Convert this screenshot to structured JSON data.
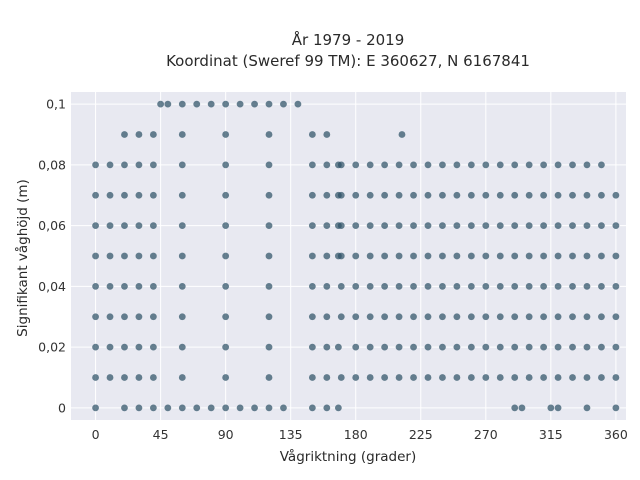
{
  "chart_data": {
    "type": "scatter",
    "title": "År 1979 - 2019",
    "subtitle": "Koordinat (Sweref 99 TM): E 360627, N 6167841",
    "xlabel": "Vågriktning (grader)",
    "ylabel": "Signifikant våghöjd (m)",
    "xlim": [
      -17,
      367
    ],
    "ylim": [
      -0.004,
      0.104
    ],
    "xticks": [
      0,
      45,
      90,
      135,
      180,
      225,
      270,
      315,
      360
    ],
    "xtick_labels": [
      "0",
      "45",
      "90",
      "135",
      "180",
      "225",
      "270",
      "315",
      "360"
    ],
    "yticks": [
      0,
      0.02,
      0.04,
      0.06,
      0.08,
      0.1
    ],
    "ytick_labels": [
      "0",
      "0,02",
      "0,04",
      "0,06",
      "0,08",
      "0,1"
    ],
    "grid": true,
    "marker_color": "#2e5266",
    "background_color": "#e8e9f1",
    "series": [
      {
        "points": [
          [
            0,
            0
          ],
          [
            0,
            0.01
          ],
          [
            0,
            0.02
          ],
          [
            0,
            0.03
          ],
          [
            0,
            0.04
          ],
          [
            0,
            0.05
          ],
          [
            0,
            0.06
          ],
          [
            0,
            0.07
          ],
          [
            0,
            0.08
          ],
          [
            10,
            0.01
          ],
          [
            10,
            0.02
          ],
          [
            10,
            0.03
          ],
          [
            10,
            0.04
          ],
          [
            10,
            0.05
          ],
          [
            10,
            0.06
          ],
          [
            10,
            0.07
          ],
          [
            10,
            0.08
          ],
          [
            20,
            0
          ],
          [
            20,
            0.01
          ],
          [
            20,
            0.02
          ],
          [
            20,
            0.03
          ],
          [
            20,
            0.04
          ],
          [
            20,
            0.05
          ],
          [
            20,
            0.06
          ],
          [
            20,
            0.07
          ],
          [
            20,
            0.08
          ],
          [
            20,
            0.09
          ],
          [
            30,
            0
          ],
          [
            30,
            0.01
          ],
          [
            30,
            0.02
          ],
          [
            30,
            0.03
          ],
          [
            30,
            0.04
          ],
          [
            30,
            0.05
          ],
          [
            30,
            0.06
          ],
          [
            30,
            0.07
          ],
          [
            30,
            0.08
          ],
          [
            30,
            0.09
          ],
          [
            40,
            0
          ],
          [
            40,
            0.01
          ],
          [
            40,
            0.02
          ],
          [
            40,
            0.03
          ],
          [
            40,
            0.04
          ],
          [
            40,
            0.05
          ],
          [
            40,
            0.06
          ],
          [
            40,
            0.07
          ],
          [
            40,
            0.08
          ],
          [
            40,
            0.09
          ],
          [
            45,
            0.1
          ],
          [
            50,
            0
          ],
          [
            50,
            0.1
          ],
          [
            60,
            0
          ],
          [
            60,
            0.1
          ],
          [
            70,
            0
          ],
          [
            70,
            0.1
          ],
          [
            80,
            0
          ],
          [
            80,
            0.1
          ],
          [
            90,
            0
          ],
          [
            90,
            0.1
          ],
          [
            100,
            0
          ],
          [
            100,
            0.1
          ],
          [
            110,
            0
          ],
          [
            110,
            0.1
          ],
          [
            120,
            0
          ],
          [
            120,
            0.1
          ],
          [
            130,
            0
          ],
          [
            130,
            0.1
          ],
          [
            140,
            0.1
          ],
          [
            60,
            0.01
          ],
          [
            60,
            0.02
          ],
          [
            60,
            0.03
          ],
          [
            60,
            0.04
          ],
          [
            60,
            0.05
          ],
          [
            60,
            0.06
          ],
          [
            60,
            0.07
          ],
          [
            60,
            0.08
          ],
          [
            60,
            0.09
          ],
          [
            90,
            0.01
          ],
          [
            90,
            0.02
          ],
          [
            90,
            0.03
          ],
          [
            90,
            0.04
          ],
          [
            90,
            0.05
          ],
          [
            90,
            0.06
          ],
          [
            90,
            0.07
          ],
          [
            90,
            0.08
          ],
          [
            90,
            0.09
          ],
          [
            120,
            0.01
          ],
          [
            120,
            0.02
          ],
          [
            120,
            0.03
          ],
          [
            120,
            0.04
          ],
          [
            120,
            0.05
          ],
          [
            120,
            0.06
          ],
          [
            120,
            0.07
          ],
          [
            120,
            0.08
          ],
          [
            120,
            0.09
          ],
          [
            150,
            0
          ],
          [
            150,
            0.01
          ],
          [
            150,
            0.02
          ],
          [
            150,
            0.03
          ],
          [
            150,
            0.04
          ],
          [
            150,
            0.05
          ],
          [
            150,
            0.06
          ],
          [
            150,
            0.07
          ],
          [
            150,
            0.08
          ],
          [
            150,
            0.09
          ],
          [
            160,
            0
          ],
          [
            160,
            0.01
          ],
          [
            160,
            0.02
          ],
          [
            160,
            0.03
          ],
          [
            160,
            0.04
          ],
          [
            160,
            0.05
          ],
          [
            160,
            0.06
          ],
          [
            160,
            0.07
          ],
          [
            160,
            0.08
          ],
          [
            160,
            0.09
          ],
          [
            168,
            0
          ],
          [
            168,
            0.02
          ],
          [
            168,
            0.05
          ],
          [
            168,
            0.06
          ],
          [
            168,
            0.07
          ],
          [
            168,
            0.08
          ],
          [
            170,
            0.01
          ],
          [
            170,
            0.03
          ],
          [
            170,
            0.04
          ],
          [
            170,
            0.05
          ],
          [
            170,
            0.06
          ],
          [
            170,
            0.07
          ],
          [
            170,
            0.08
          ],
          [
            180,
            0.01
          ],
          [
            180,
            0.02
          ],
          [
            180,
            0.03
          ],
          [
            180,
            0.04
          ],
          [
            180,
            0.05
          ],
          [
            180,
            0.06
          ],
          [
            180,
            0.07
          ],
          [
            180,
            0.08
          ],
          [
            190,
            0.01
          ],
          [
            190,
            0.02
          ],
          [
            190,
            0.03
          ],
          [
            190,
            0.04
          ],
          [
            190,
            0.05
          ],
          [
            190,
            0.06
          ],
          [
            190,
            0.07
          ],
          [
            190,
            0.08
          ],
          [
            200,
            0.01
          ],
          [
            200,
            0.02
          ],
          [
            200,
            0.03
          ],
          [
            200,
            0.04
          ],
          [
            200,
            0.05
          ],
          [
            200,
            0.06
          ],
          [
            200,
            0.07
          ],
          [
            200,
            0.08
          ],
          [
            210,
            0.01
          ],
          [
            210,
            0.02
          ],
          [
            210,
            0.03
          ],
          [
            210,
            0.04
          ],
          [
            210,
            0.05
          ],
          [
            210,
            0.06
          ],
          [
            210,
            0.07
          ],
          [
            210,
            0.08
          ],
          [
            212,
            0.09
          ],
          [
            220,
            0.01
          ],
          [
            220,
            0.02
          ],
          [
            220,
            0.03
          ],
          [
            220,
            0.04
          ],
          [
            220,
            0.05
          ],
          [
            220,
            0.06
          ],
          [
            220,
            0.07
          ],
          [
            220,
            0.08
          ],
          [
            230,
            0.01
          ],
          [
            230,
            0.02
          ],
          [
            230,
            0.03
          ],
          [
            230,
            0.04
          ],
          [
            230,
            0.05
          ],
          [
            230,
            0.06
          ],
          [
            230,
            0.07
          ],
          [
            230,
            0.08
          ],
          [
            240,
            0.01
          ],
          [
            240,
            0.02
          ],
          [
            240,
            0.03
          ],
          [
            240,
            0.04
          ],
          [
            240,
            0.05
          ],
          [
            240,
            0.06
          ],
          [
            240,
            0.07
          ],
          [
            240,
            0.08
          ],
          [
            250,
            0.01
          ],
          [
            250,
            0.02
          ],
          [
            250,
            0.03
          ],
          [
            250,
            0.04
          ],
          [
            250,
            0.05
          ],
          [
            250,
            0.06
          ],
          [
            250,
            0.07
          ],
          [
            250,
            0.08
          ],
          [
            260,
            0.01
          ],
          [
            260,
            0.02
          ],
          [
            260,
            0.03
          ],
          [
            260,
            0.04
          ],
          [
            260,
            0.05
          ],
          [
            260,
            0.06
          ],
          [
            260,
            0.07
          ],
          [
            260,
            0.08
          ],
          [
            270,
            0.01
          ],
          [
            270,
            0.02
          ],
          [
            270,
            0.03
          ],
          [
            270,
            0.04
          ],
          [
            270,
            0.05
          ],
          [
            270,
            0.06
          ],
          [
            270,
            0.07
          ],
          [
            270,
            0.08
          ],
          [
            280,
            0.01
          ],
          [
            280,
            0.02
          ],
          [
            280,
            0.03
          ],
          [
            280,
            0.04
          ],
          [
            280,
            0.05
          ],
          [
            280,
            0.06
          ],
          [
            280,
            0.07
          ],
          [
            280,
            0.08
          ],
          [
            290,
            0
          ],
          [
            290,
            0.01
          ],
          [
            290,
            0.02
          ],
          [
            290,
            0.03
          ],
          [
            290,
            0.04
          ],
          [
            290,
            0.05
          ],
          [
            290,
            0.06
          ],
          [
            290,
            0.07
          ],
          [
            290,
            0.08
          ],
          [
            295,
            0
          ],
          [
            300,
            0.01
          ],
          [
            300,
            0.02
          ],
          [
            300,
            0.03
          ],
          [
            300,
            0.04
          ],
          [
            300,
            0.05
          ],
          [
            300,
            0.06
          ],
          [
            300,
            0.07
          ],
          [
            300,
            0.08
          ],
          [
            310,
            0.01
          ],
          [
            310,
            0.02
          ],
          [
            310,
            0.03
          ],
          [
            310,
            0.04
          ],
          [
            310,
            0.05
          ],
          [
            310,
            0.06
          ],
          [
            310,
            0.07
          ],
          [
            310,
            0.08
          ],
          [
            315,
            0
          ],
          [
            320,
            0
          ],
          [
            320,
            0.01
          ],
          [
            320,
            0.02
          ],
          [
            320,
            0.03
          ],
          [
            320,
            0.04
          ],
          [
            320,
            0.05
          ],
          [
            320,
            0.06
          ],
          [
            320,
            0.07
          ],
          [
            320,
            0.08
          ],
          [
            330,
            0.01
          ],
          [
            330,
            0.02
          ],
          [
            330,
            0.03
          ],
          [
            330,
            0.04
          ],
          [
            330,
            0.05
          ],
          [
            330,
            0.06
          ],
          [
            330,
            0.07
          ],
          [
            330,
            0.08
          ],
          [
            340,
            0
          ],
          [
            340,
            0.01
          ],
          [
            340,
            0.02
          ],
          [
            340,
            0.03
          ],
          [
            340,
            0.04
          ],
          [
            340,
            0.05
          ],
          [
            340,
            0.06
          ],
          [
            340,
            0.07
          ],
          [
            340,
            0.08
          ],
          [
            350,
            0.01
          ],
          [
            350,
            0.02
          ],
          [
            350,
            0.03
          ],
          [
            350,
            0.04
          ],
          [
            350,
            0.05
          ],
          [
            350,
            0.06
          ],
          [
            350,
            0.07
          ],
          [
            350,
            0.08
          ],
          [
            360,
            0
          ],
          [
            360,
            0.01
          ],
          [
            360,
            0.02
          ],
          [
            360,
            0.03
          ],
          [
            360,
            0.04
          ],
          [
            360,
            0.05
          ],
          [
            360,
            0.06
          ],
          [
            360,
            0.07
          ]
        ]
      }
    ]
  }
}
